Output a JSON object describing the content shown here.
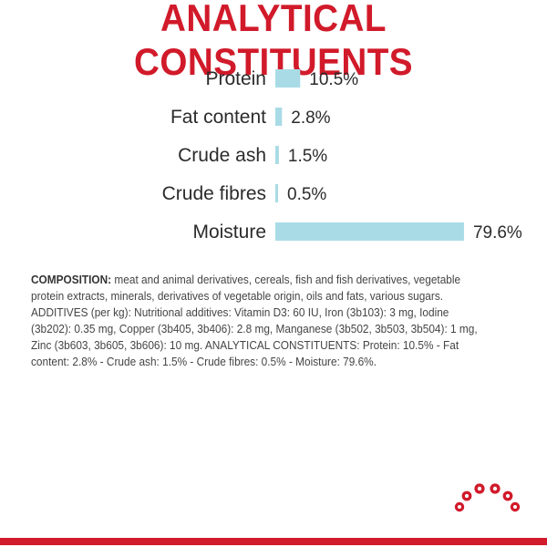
{
  "title": "ANALYTICAL CONSTITUENTS",
  "chart_data": {
    "type": "bar",
    "orientation": "horizontal",
    "categories": [
      "Protein",
      "Fat content",
      "Crude ash",
      "Crude fibres",
      "Moisture"
    ],
    "values": [
      10.5,
      2.8,
      1.5,
      0.5,
      79.6
    ],
    "value_labels": [
      "10.5%",
      "2.8%",
      "1.5%",
      "0.5%",
      "79.6%"
    ],
    "title": "ANALYTICAL CONSTITUENTS",
    "bar_color": "#a9dbe6",
    "label_color": "#2b2b2b"
  },
  "composition": {
    "label": "COMPOSITION:",
    "text": " meat and animal derivatives, cereals, fish and fish derivatives, vegetable protein extracts, minerals, derivatives of vegetable origin, oils and fats, various sugars. ADDITIVES (per kg): Nutritional additives: Vitamin D3: 60 IU, Iron (3b103): 3 mg, Iodine (3b202): 0.35 mg, Copper (3b405, 3b406): 2.8 mg, Manganese (3b502, 3b503, 3b504): 1 mg, Zinc (3b603, 3b605, 3b606): 10 mg. ANALYTICAL CONSTITUENTS: Protein: 10.5% - Fat content: 2.8% - Crude ash: 1.5% - Crude fibres: 0.5% - Moisture: 79.6%."
  },
  "colors": {
    "brand_red": "#d11a2a",
    "bar": "#a9dbe6"
  },
  "logo_icon": "royal-canin-crown-icon"
}
